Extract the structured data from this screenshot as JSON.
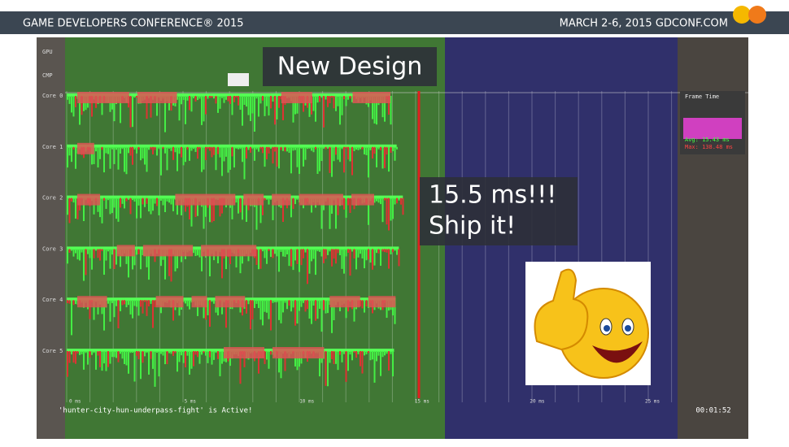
{
  "header": {
    "title": "GAME DEVELOPERS CONFERENCE® 2015",
    "info": "MARCH 2-6, 2015  GDCONF.COM"
  },
  "overlay": {
    "heading": "New Design",
    "callout": [
      "15.5 ms!!!",
      "Ship it!"
    ]
  },
  "profiler": {
    "top_labels": [
      "GPU",
      "CMP"
    ],
    "lanes": [
      "Core 0",
      "Core 1",
      "Core 2",
      "Core 3",
      "Core 4",
      "Core 5"
    ],
    "frame_time": {
      "title": "Frame Time",
      "avg": "Avg: 15.43 ms",
      "max": "Max: 138.48 ms"
    },
    "time_ticks": [
      "0 ms",
      "5 ms",
      "10 ms",
      "15 ms",
      "20 ms",
      "25 ms"
    ],
    "status": "'hunter-city-hun-underpass-fight' is Active!",
    "clock": "00:01:52"
  }
}
